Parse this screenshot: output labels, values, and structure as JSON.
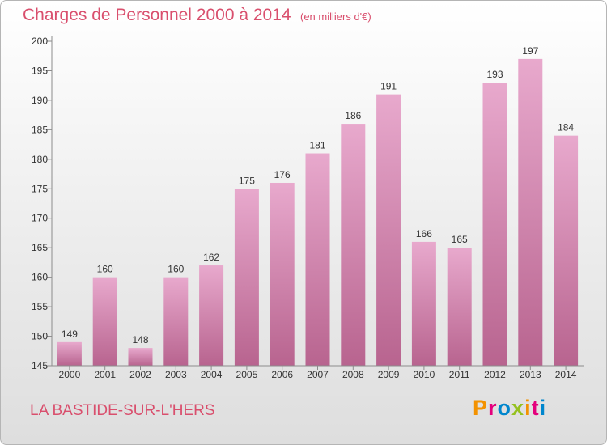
{
  "header": {
    "title": "Charges de Personnel 2000 à 2014",
    "unit": "(en milliers d'€)"
  },
  "footer": {
    "commune": "LA BASTIDE-SUR-L'HERS",
    "brand": "Proxiti",
    "brand_colors": [
      "#f39200",
      "#e4007c",
      "#0086cd",
      "#95c11f"
    ]
  },
  "colors": {
    "title": "#d94f6d",
    "bar_top": "#e8a9cd",
    "bar_bottom": "#b8648f",
    "axis": "#8c8c8c"
  },
  "chart_data": {
    "type": "bar",
    "categories": [
      "2000",
      "2001",
      "2002",
      "2003",
      "2004",
      "2005",
      "2006",
      "2007",
      "2008",
      "2009",
      "2010",
      "2011",
      "2012",
      "2013",
      "2014"
    ],
    "values": [
      149,
      160,
      148,
      160,
      162,
      175,
      176,
      181,
      186,
      191,
      166,
      165,
      193,
      197,
      184
    ],
    "ylim": [
      145,
      200
    ],
    "yticks": [
      145,
      150,
      155,
      160,
      165,
      170,
      175,
      180,
      185,
      190,
      195,
      200
    ],
    "grid": false,
    "data_labels": true
  }
}
